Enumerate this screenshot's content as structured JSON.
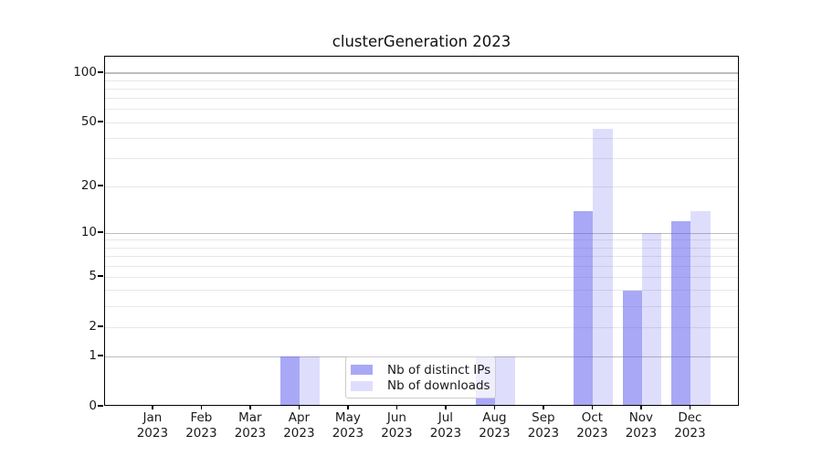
{
  "title": "clusterGeneration 2023",
  "legend": {
    "items": [
      {
        "label": "Nb of distinct IPs",
        "color": "rgba(88,88,240,0.52)"
      },
      {
        "label": "Nb of downloads",
        "color": "rgba(88,88,240,0.20)"
      }
    ]
  },
  "axes": {
    "y_tick_labels": [
      "0",
      "1",
      "2",
      "5",
      "10",
      "20",
      "50",
      "100"
    ],
    "x_tick_year": "2023"
  },
  "chart_data": {
    "type": "bar",
    "title": "clusterGeneration 2023",
    "categories": [
      "Jan 2023",
      "Feb 2023",
      "Mar 2023",
      "Apr 2023",
      "May 2023",
      "Jun 2023",
      "Jul 2023",
      "Aug 2023",
      "Sep 2023",
      "Oct 2023",
      "Nov 2023",
      "Dec 2023"
    ],
    "month_names": [
      "Jan",
      "Feb",
      "Mar",
      "Apr",
      "May",
      "Jun",
      "Jul",
      "Aug",
      "Sep",
      "Oct",
      "Nov",
      "Dec"
    ],
    "series": [
      {
        "name": "Nb of distinct IPs",
        "values": [
          0,
          0,
          0,
          1,
          0,
          0,
          0,
          1,
          0,
          14,
          4,
          12
        ],
        "color": "rgba(88,88,240,0.52)",
        "solid_hex": "#a9a9f5"
      },
      {
        "name": "Nb of downloads",
        "values": [
          0,
          0,
          0,
          1,
          0,
          0,
          0,
          1,
          0,
          46,
          10,
          14
        ],
        "color": "rgba(88,88,240,0.20)",
        "solid_hex": "#dcdcf9"
      }
    ],
    "yscale": "log1p",
    "ylim": [
      0,
      127
    ],
    "y_ticks": [
      0,
      1,
      2,
      5,
      10,
      20,
      50,
      100
    ],
    "y_major_gridlines": [
      1,
      10,
      100
    ],
    "y_minor_gridlines": [
      2,
      3,
      4,
      5,
      6,
      7,
      8,
      9,
      20,
      30,
      40,
      50,
      60,
      70,
      80,
      90
    ],
    "grid": true,
    "legend_position": "lower center",
    "bar_group": "paired, IPs left of tick, downloads right of tick"
  }
}
